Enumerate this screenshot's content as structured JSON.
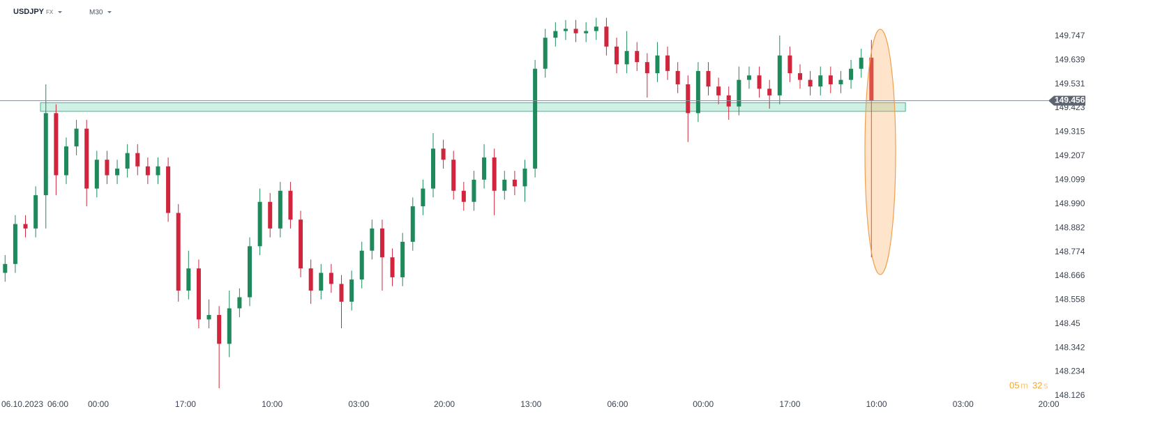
{
  "chart_data": {
    "type": "candlestick",
    "symbol": "USDJPY",
    "market": "FX",
    "timeframe": "M30",
    "open": [
      148.68,
      148.72,
      148.9,
      148.88,
      149.03,
      149.4,
      149.12,
      149.25,
      149.33,
      149.06,
      149.19,
      149.12,
      149.15,
      149.22,
      149.16,
      149.12,
      149.16,
      148.95,
      148.6,
      148.7,
      148.47,
      148.49,
      148.36,
      148.52,
      148.57,
      148.8,
      149.0,
      148.88,
      149.05,
      148.92,
      148.7,
      148.6,
      148.68,
      148.63,
      148.55,
      148.65,
      148.78,
      148.88,
      148.75,
      148.66,
      148.82,
      148.98,
      149.06,
      149.24,
      149.19,
      149.05,
      149.0,
      149.1,
      149.2,
      149.05,
      149.1,
      149.07,
      149.15,
      149.6,
      149.74,
      149.77,
      149.78,
      149.76,
      149.77,
      149.79,
      149.7,
      149.62,
      149.68,
      149.63,
      149.58,
      149.66,
      149.59,
      149.53,
      149.4,
      149.59,
      149.52,
      149.48,
      149.43,
      149.55,
      149.57,
      149.51,
      149.48,
      149.66,
      149.58,
      149.55,
      149.52,
      149.57,
      149.53,
      149.55,
      149.6,
      149.65
    ],
    "high": [
      148.76,
      148.94,
      148.94,
      149.07,
      149.53,
      149.44,
      149.29,
      149.37,
      149.37,
      149.23,
      149.23,
      149.19,
      149.26,
      149.26,
      149.2,
      149.2,
      149.2,
      148.99,
      148.78,
      148.74,
      148.56,
      148.53,
      148.6,
      148.61,
      148.84,
      149.06,
      149.04,
      149.09,
      149.09,
      148.96,
      148.74,
      148.72,
      148.72,
      148.67,
      148.69,
      148.82,
      148.92,
      148.92,
      148.79,
      148.86,
      149.02,
      149.1,
      149.31,
      149.28,
      149.23,
      149.09,
      149.14,
      149.26,
      149.24,
      149.14,
      149.14,
      149.19,
      149.64,
      149.78,
      149.81,
      149.82,
      149.82,
      149.81,
      149.83,
      149.83,
      149.74,
      149.77,
      149.72,
      149.67,
      149.72,
      149.7,
      149.63,
      149.57,
      149.63,
      149.63,
      149.56,
      149.52,
      149.61,
      149.61,
      149.61,
      149.55,
      149.75,
      149.7,
      149.62,
      149.59,
      149.61,
      149.61,
      149.59,
      149.64,
      149.69,
      149.73
    ],
    "low": [
      148.64,
      148.68,
      148.84,
      148.84,
      148.88,
      149.03,
      149.08,
      149.21,
      148.98,
      149.02,
      149.08,
      149.08,
      149.11,
      149.12,
      149.08,
      149.08,
      148.91,
      148.55,
      148.56,
      148.43,
      148.43,
      148.16,
      148.3,
      148.48,
      148.53,
      148.76,
      148.84,
      148.84,
      148.88,
      148.66,
      148.54,
      148.56,
      148.59,
      148.43,
      148.51,
      148.61,
      148.74,
      148.6,
      148.62,
      148.62,
      148.78,
      148.94,
      149.02,
      149.15,
      149.01,
      148.96,
      148.96,
      149.06,
      148.94,
      149.01,
      149.03,
      149.0,
      149.11,
      149.56,
      149.7,
      149.73,
      149.72,
      149.72,
      149.73,
      149.66,
      149.58,
      149.58,
      149.59,
      149.47,
      149.54,
      149.55,
      149.49,
      149.27,
      149.36,
      149.48,
      149.44,
      149.37,
      149.39,
      149.51,
      149.47,
      149.42,
      149.44,
      149.54,
      149.51,
      149.48,
      149.48,
      149.49,
      149.49,
      149.51,
      149.56,
      148.75
    ],
    "close": [
      148.72,
      148.9,
      148.88,
      149.03,
      149.4,
      149.12,
      149.25,
      149.33,
      149.06,
      149.19,
      149.12,
      149.15,
      149.22,
      149.16,
      149.12,
      149.16,
      148.95,
      148.6,
      148.7,
      148.47,
      148.49,
      148.36,
      148.52,
      148.57,
      148.8,
      149.0,
      148.88,
      149.05,
      148.92,
      148.7,
      148.6,
      148.68,
      148.63,
      148.55,
      148.65,
      148.78,
      148.88,
      148.75,
      148.66,
      148.82,
      148.98,
      149.06,
      149.24,
      149.19,
      149.05,
      149.0,
      149.1,
      149.2,
      149.05,
      149.1,
      149.07,
      149.15,
      149.6,
      149.74,
      149.77,
      149.78,
      149.76,
      149.77,
      149.79,
      149.7,
      149.62,
      149.68,
      149.63,
      149.58,
      149.66,
      149.59,
      149.53,
      149.4,
      149.59,
      149.52,
      149.48,
      149.43,
      149.55,
      149.57,
      149.51,
      149.48,
      149.66,
      149.58,
      149.55,
      149.52,
      149.57,
      149.53,
      149.55,
      149.6,
      149.65,
      149.456
    ],
    "up_color": "#1e8a5c",
    "down_color": "#d0253c",
    "ylim": [
      148.11,
      149.91
    ],
    "yticks": [
      149.747,
      149.639,
      149.531,
      149.423,
      149.315,
      149.207,
      149.099,
      {
        "value": 148.99,
        "label": "148.990"
      },
      148.882,
      148.774,
      148.666,
      148.558,
      148.45,
      148.342,
      148.234,
      148.126
    ],
    "xlim": [
      0,
      103
    ],
    "xticks": [
      {
        "value": 2.19,
        "label": "06.10.2023"
      },
      {
        "value": 5.68,
        "label": "06:00"
      },
      {
        "value": 9.65,
        "label": "00:00"
      },
      {
        "value": 18.2,
        "label": "17:00"
      },
      {
        "value": 26.7,
        "label": "10:00"
      },
      {
        "value": 35.2,
        "label": "03:00"
      },
      {
        "value": 43.6,
        "label": "20:00"
      },
      {
        "value": 52.1,
        "label": "13:00"
      },
      {
        "value": 60.6,
        "label": "06:00"
      },
      {
        "value": 69.0,
        "label": "00:00"
      },
      {
        "value": 77.5,
        "label": "17:00"
      },
      {
        "value": 86.0,
        "label": "10:00"
      },
      {
        "value": 94.5,
        "label": "03:00"
      },
      {
        "value": 102.9,
        "label": "20:00"
      }
    ],
    "last_price": {
      "value": 149.456,
      "label": "149.456"
    },
    "zone": {
      "x": [
        3.97,
        88.84
      ],
      "y": [
        149.408,
        149.447
      ]
    },
    "countdown": {
      "minutes": "05",
      "minutes_unit": "m",
      "seconds": "32",
      "seconds_unit": "s"
    }
  }
}
